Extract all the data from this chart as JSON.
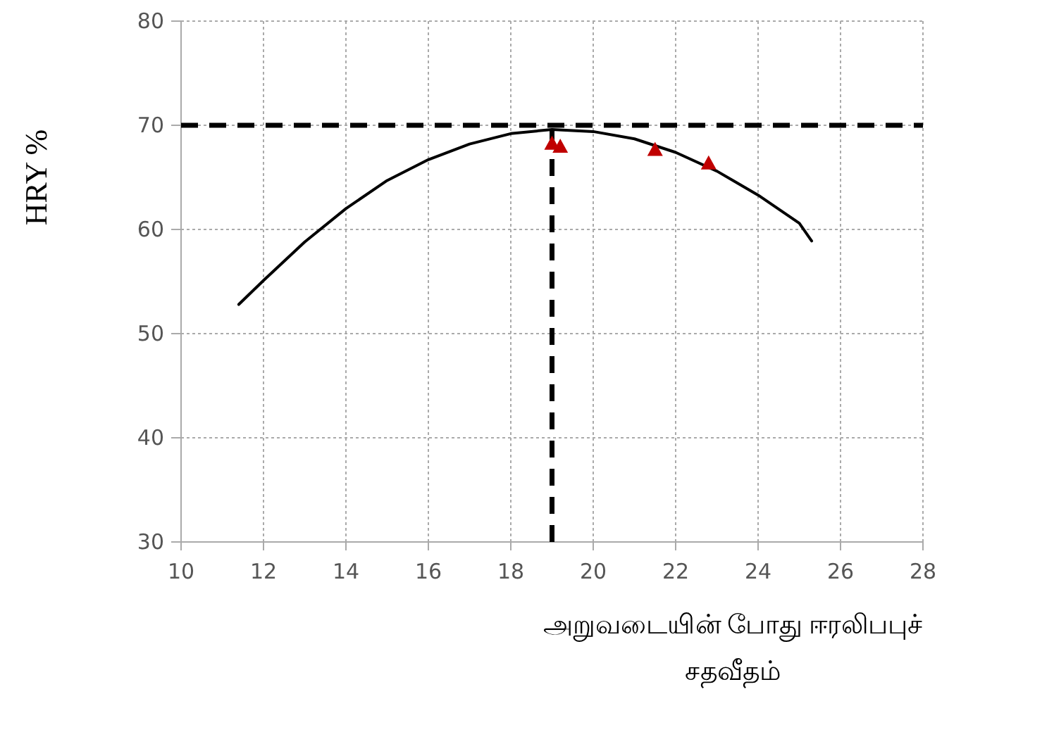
{
  "chart_data": {
    "type": "scatter",
    "xlabel": "அறுவடையின் போது ஈரலிபபுச் சதவீதம்",
    "ylabel": "HRY %",
    "xlim": [
      10,
      28
    ],
    "ylim": [
      30,
      80
    ],
    "xticks": [
      10,
      12,
      14,
      16,
      18,
      20,
      22,
      24,
      26,
      28
    ],
    "yticks": [
      30,
      40,
      50,
      60,
      70,
      80
    ],
    "grid": true,
    "series": [
      {
        "type": "line",
        "color": "#000000",
        "marker": "none",
        "x": [
          11.4,
          12,
          13,
          14,
          15,
          16,
          17,
          18,
          19,
          20,
          21,
          22,
          23,
          24,
          25,
          25.3
        ],
        "values": [
          52.8,
          55.1,
          58.8,
          62.0,
          64.7,
          66.7,
          68.2,
          69.2,
          69.6,
          69.4,
          68.7,
          67.4,
          65.6,
          63.3,
          60.6,
          58.9
        ]
      },
      {
        "color": "#c00000",
        "marker": "triangle",
        "x": [
          19.0,
          19.2,
          21.5,
          22.8
        ],
        "values": [
          68.2,
          67.9,
          67.6,
          66.3
        ]
      }
    ],
    "ref_lines": [
      {
        "axis": "y",
        "value": 70,
        "color": "#000000",
        "line_style": "dashed"
      },
      {
        "axis": "x",
        "value": 19,
        "color": "#000000",
        "line_style": "dashed"
      }
    ]
  }
}
